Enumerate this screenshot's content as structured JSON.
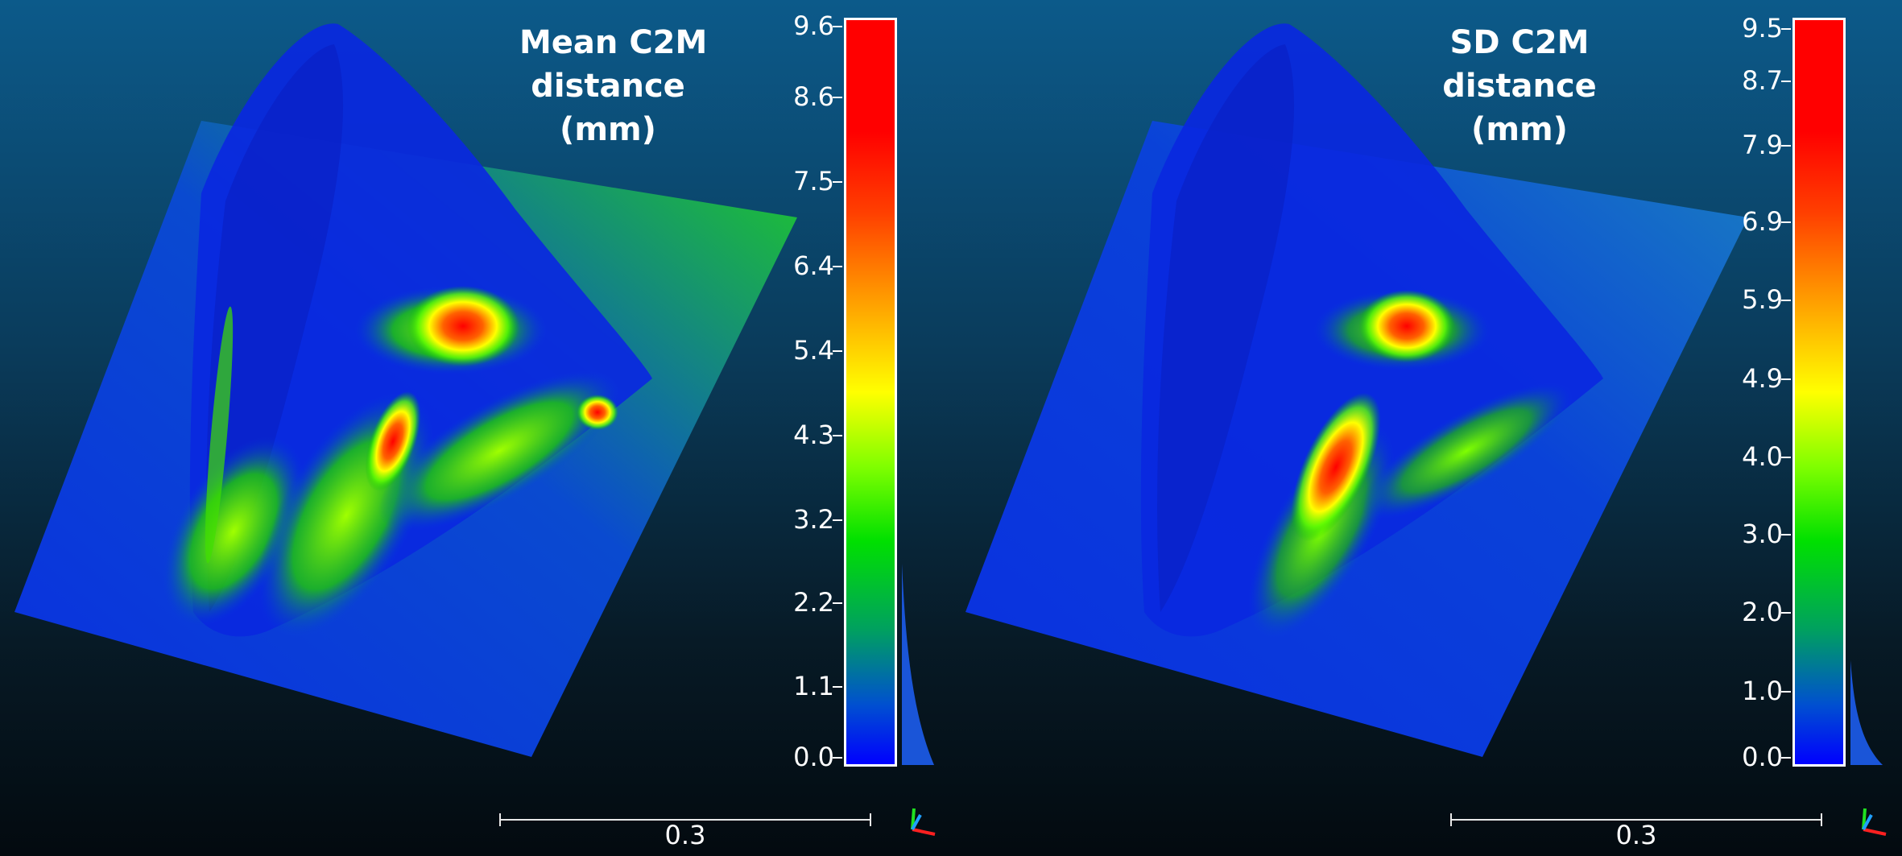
{
  "panels": [
    {
      "title_lines": [
        "Mean C2M",
        "distance",
        "(mm)"
      ],
      "ticks": [
        "9.6",
        "8.6",
        "7.5",
        "6.4",
        "5.4",
        "4.3",
        "3.2",
        "2.2",
        "1.1",
        "0.0"
      ],
      "scale_label": "0.3"
    },
    {
      "title_lines": [
        "SD C2M",
        "distance",
        "(mm)"
      ],
      "ticks": [
        "9.5",
        "8.7",
        "7.9",
        "6.9",
        "5.9",
        "4.9",
        "4.0",
        "3.0",
        "2.0",
        "1.0",
        "0.0"
      ],
      "scale_label": "0.3"
    }
  ],
  "colors": {
    "low": "#0000ff",
    "mid_low": "#00e000",
    "mid": "#ffff00",
    "high": "#ff0000",
    "text": "#ffffff"
  },
  "icons": [
    "axis-triad-icon",
    "axis-triad-icon"
  ]
}
